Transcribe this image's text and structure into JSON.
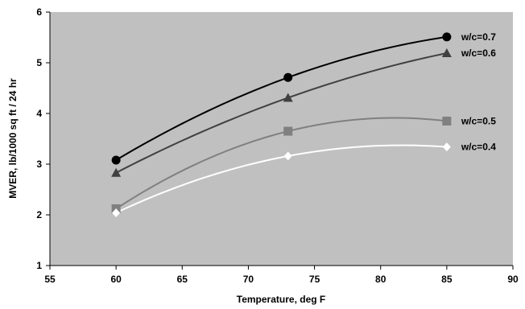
{
  "chart_data": {
    "type": "line",
    "title": "",
    "xlabel": "Temperature, deg F",
    "ylabel": "MVER, lb/1000 sq ft / 24 hr",
    "xlim": [
      55,
      90
    ],
    "ylim": [
      1,
      6
    ],
    "xticks": [
      "55",
      "60",
      "65",
      "70",
      "75",
      "80",
      "85",
      "90"
    ],
    "yticks": [
      "1",
      "2",
      "3",
      "4",
      "5",
      "6"
    ],
    "grid": false,
    "plot_background": "#c0c0c0",
    "series": [
      {
        "name": "w/c=0.7",
        "x": [
          60,
          73,
          85
        ],
        "y": [
          3.08,
          4.71,
          5.51
        ],
        "color": "#000000",
        "marker": "circle"
      },
      {
        "name": "w/c=0.6",
        "x": [
          60,
          73,
          85
        ],
        "y": [
          2.83,
          4.31,
          5.19
        ],
        "color": "#404040",
        "marker": "triangle"
      },
      {
        "name": "w/c=0.5",
        "x": [
          60,
          73,
          85
        ],
        "y": [
          2.12,
          3.65,
          3.85
        ],
        "color": "#808080",
        "marker": "square"
      },
      {
        "name": "w/c=0.4",
        "x": [
          60,
          73,
          85
        ],
        "y": [
          2.04,
          3.16,
          3.34
        ],
        "color": "#ffffff",
        "marker": "diamond"
      }
    ]
  }
}
